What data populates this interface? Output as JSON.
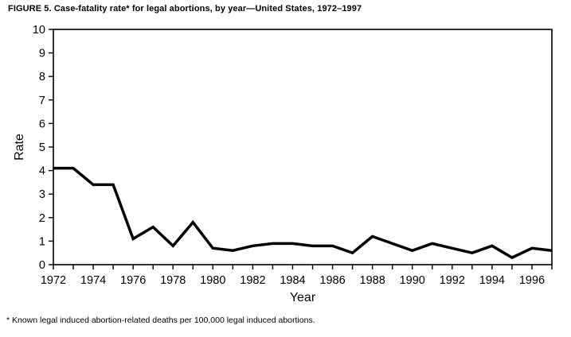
{
  "figure": {
    "title": "FIGURE 5. Case-fatality rate* for legal abortions, by year—United States, 1972–1997",
    "footnote": "* Known legal induced abortion-related deaths per 100,000 legal induced abortions."
  },
  "chart_data": {
    "type": "line",
    "title": "FIGURE 5. Case-fatality rate* for legal abortions, by year—United States, 1972–1997",
    "xlabel": "Year",
    "ylabel": "Rate",
    "x": [
      1972,
      1973,
      1974,
      1975,
      1976,
      1977,
      1978,
      1979,
      1980,
      1981,
      1982,
      1983,
      1984,
      1985,
      1986,
      1987,
      1988,
      1989,
      1990,
      1991,
      1992,
      1993,
      1994,
      1995,
      1996,
      1997
    ],
    "values": [
      4.1,
      4.1,
      3.4,
      3.4,
      1.1,
      1.6,
      0.8,
      1.8,
      0.7,
      0.6,
      0.8,
      0.9,
      0.9,
      0.8,
      0.8,
      0.5,
      1.2,
      0.9,
      0.6,
      0.9,
      0.7,
      0.5,
      0.8,
      0.3,
      0.7,
      0.6
    ],
    "xlim": [
      1972,
      1997
    ],
    "ylim": [
      0,
      10
    ],
    "y_ticks": [
      0,
      1,
      2,
      3,
      4,
      5,
      6,
      7,
      8,
      9,
      10
    ],
    "x_tick_step": 1,
    "x_label_step": 2,
    "grid": false,
    "legend": "none",
    "line_color": "#000000",
    "axis_color": "#000000",
    "background_color": "#ffffff",
    "line_width": 3.5
  }
}
